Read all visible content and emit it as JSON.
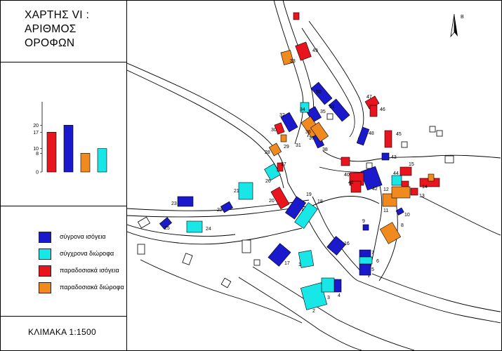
{
  "title_lines": [
    "ΧΑΡΤΗΣ VI :",
    "ΑΡΙΘΜΟΣ",
    "ΟΡΟΦΩΝ"
  ],
  "scale_label": "ΚΛΙΜΑΚΑ 1:1500",
  "north_label": "Β",
  "colors": {
    "modern_ground": "#1a1acc",
    "modern_two": "#19e6e6",
    "trad_ground": "#e8141e",
    "trad_two": "#f08a1e"
  },
  "legend": [
    {
      "label": "σύγρονα ισόγεια",
      "color": "#1a1acc"
    },
    {
      "label": "σύγχρονα διώροφα",
      "color": "#19e6e6"
    },
    {
      "label": "παραδοσιακά ισόγεια",
      "color": "#e8141e"
    },
    {
      "label": "παραδοσιακά διώροφα",
      "color": "#f08a1e"
    }
  ],
  "chart_data": {
    "type": "bar",
    "categories": [
      "σύγρονα ισόγεια",
      "σύγχρονα διώροφα",
      "παραδοσιακά ισόγεια",
      "παραδοσιακά διώροφα"
    ],
    "bars": [
      {
        "value": 17,
        "color": "#e8141e"
      },
      {
        "value": 20,
        "color": "#1a1acc"
      },
      {
        "value": 8,
        "color": "#f08a1e"
      },
      {
        "value": 10,
        "color": "#19e6e6"
      }
    ],
    "yticks": [
      0,
      8,
      10,
      17,
      20
    ],
    "ylim": [
      0,
      30
    ],
    "grid": false,
    "title": "",
    "xlabel": "",
    "ylabel": ""
  },
  "building_numbers": [
    "1",
    "2",
    "3",
    "4",
    "5",
    "6",
    "7",
    "8",
    "9",
    "10",
    "11",
    "12",
    "13",
    "14",
    "15",
    "16",
    "17",
    "18",
    "19",
    "20",
    "21",
    "22",
    "23",
    "24",
    "25",
    "26",
    "27",
    "28",
    "29",
    "30",
    "31",
    "32",
    "33",
    "34",
    "35",
    "36",
    "37",
    "38",
    "40",
    "41",
    "42",
    "43",
    "44",
    "45",
    "46",
    "47",
    "48",
    "49",
    "50",
    "51"
  ]
}
